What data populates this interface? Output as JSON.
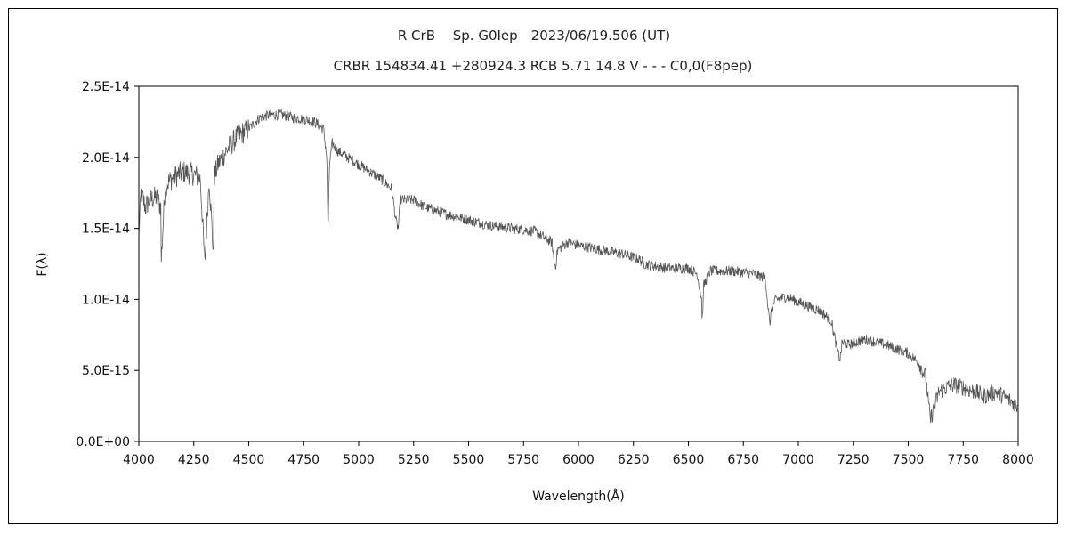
{
  "chart_data": {
    "type": "line",
    "title": "R CrB　 Sp. G0Iep　2023/06/19.506 (UT)",
    "subtitle": "CRBR 154834.41 +280924.3 RCB 5.71 14.8 V - - - C0,0(F8pep)",
    "xlabel": "Wavelength(Å)",
    "ylabel": "F(λ)",
    "xlim": [
      4000,
      8000
    ],
    "ylim": [
      0,
      2.5e-14
    ],
    "x_ticks": [
      4000,
      4250,
      4500,
      4750,
      5000,
      5250,
      5500,
      5750,
      6000,
      6250,
      6500,
      6750,
      7000,
      7250,
      7500,
      7750,
      8000
    ],
    "x_tick_labels": [
      "4000",
      "4250",
      "4500",
      "4750",
      "5000",
      "5250",
      "5500",
      "5750",
      "6000",
      "6250",
      "6500",
      "6750",
      "7000",
      "7250",
      "7500",
      "7750",
      "8000"
    ],
    "y_ticks": [
      0,
      5e-15,
      1e-14,
      1.5e-14,
      2e-14,
      2.5e-14
    ],
    "y_tick_labels": [
      "0.0E+00",
      "5.0E-15",
      "1.0E-14",
      "1.5E-14",
      "2.0E-14",
      "2.5E-14"
    ],
    "grid": false,
    "line_color": "#555555",
    "noise_fraction": 0.03,
    "series": [
      {
        "x": [
          4000,
          4010,
          4030,
          4050,
          4080,
          4100,
          4101,
          4120,
          4150,
          4200,
          4250,
          4280,
          4300,
          4320,
          4340,
          4341,
          4360,
          4400,
          4450,
          4500,
          4550,
          4600,
          4650,
          4700,
          4750,
          4800,
          4840,
          4855,
          4861,
          4867,
          4880,
          4900,
          4950,
          5000,
          5050,
          5100,
          5150,
          5170,
          5180,
          5190,
          5250,
          5300,
          5400,
          5500,
          5600,
          5700,
          5800,
          5880,
          5890,
          5896,
          5905,
          5950,
          6000,
          6100,
          6200,
          6280,
          6300,
          6400,
          6500,
          6540,
          6560,
          6563,
          6570,
          6600,
          6700,
          6800,
          6850,
          6870,
          6880,
          6900,
          6950,
          7000,
          7050,
          7100,
          7150,
          7180,
          7190,
          7200,
          7230,
          7300,
          7350,
          7400,
          7450,
          7500,
          7550,
          7580,
          7600,
          7610,
          7640,
          7700,
          7750,
          7800,
          7850,
          7900,
          7950,
          8000
        ],
        "y": [
          1.45e-14,
          1.75e-14,
          1.65e-14,
          1.7e-14,
          1.72e-14,
          1.65e-14,
          1.25e-14,
          1.8e-14,
          1.85e-14,
          1.9e-14,
          1.88e-14,
          1.85e-14,
          1.25e-14,
          1.85e-14,
          1.3e-14,
          1.85e-14,
          1.95e-14,
          2.05e-14,
          2.15e-14,
          2.2e-14,
          2.28e-14,
          2.3e-14,
          2.3e-14,
          2.28e-14,
          2.27e-14,
          2.25e-14,
          2.2e-14,
          2e-14,
          1.45e-14,
          1.95e-14,
          2.1e-14,
          2.05e-14,
          2e-14,
          1.95e-14,
          1.9e-14,
          1.85e-14,
          1.78e-14,
          1.55e-14,
          1.5e-14,
          1.7e-14,
          1.7e-14,
          1.65e-14,
          1.6e-14,
          1.56e-14,
          1.52e-14,
          1.5e-14,
          1.48e-14,
          1.4e-14,
          1.25e-14,
          1.24e-14,
          1.35e-14,
          1.4e-14,
          1.38e-14,
          1.35e-14,
          1.32e-14,
          1.28e-14,
          1.25e-14,
          1.22e-14,
          1.22e-14,
          1.18e-14,
          1e-14,
          8.4e-15,
          1.1e-14,
          1.2e-14,
          1.2e-14,
          1.18e-14,
          1.15e-14,
          8.2e-15,
          9.5e-15,
          1e-14,
          1.02e-14,
          9.8e-15,
          9.5e-15,
          9.2e-15,
          8.5e-15,
          6.2e-15,
          5.8e-15,
          7e-15,
          6.8e-15,
          7.2e-15,
          7e-15,
          6.8e-15,
          6.5e-15,
          6.2e-15,
          5.5e-15,
          4.5e-15,
          1.5e-15,
          2e-15,
          3.5e-15,
          4e-15,
          3.8e-15,
          3.5e-15,
          3.2e-15,
          3.5e-15,
          3e-15,
          2.5e-15
        ]
      }
    ]
  }
}
